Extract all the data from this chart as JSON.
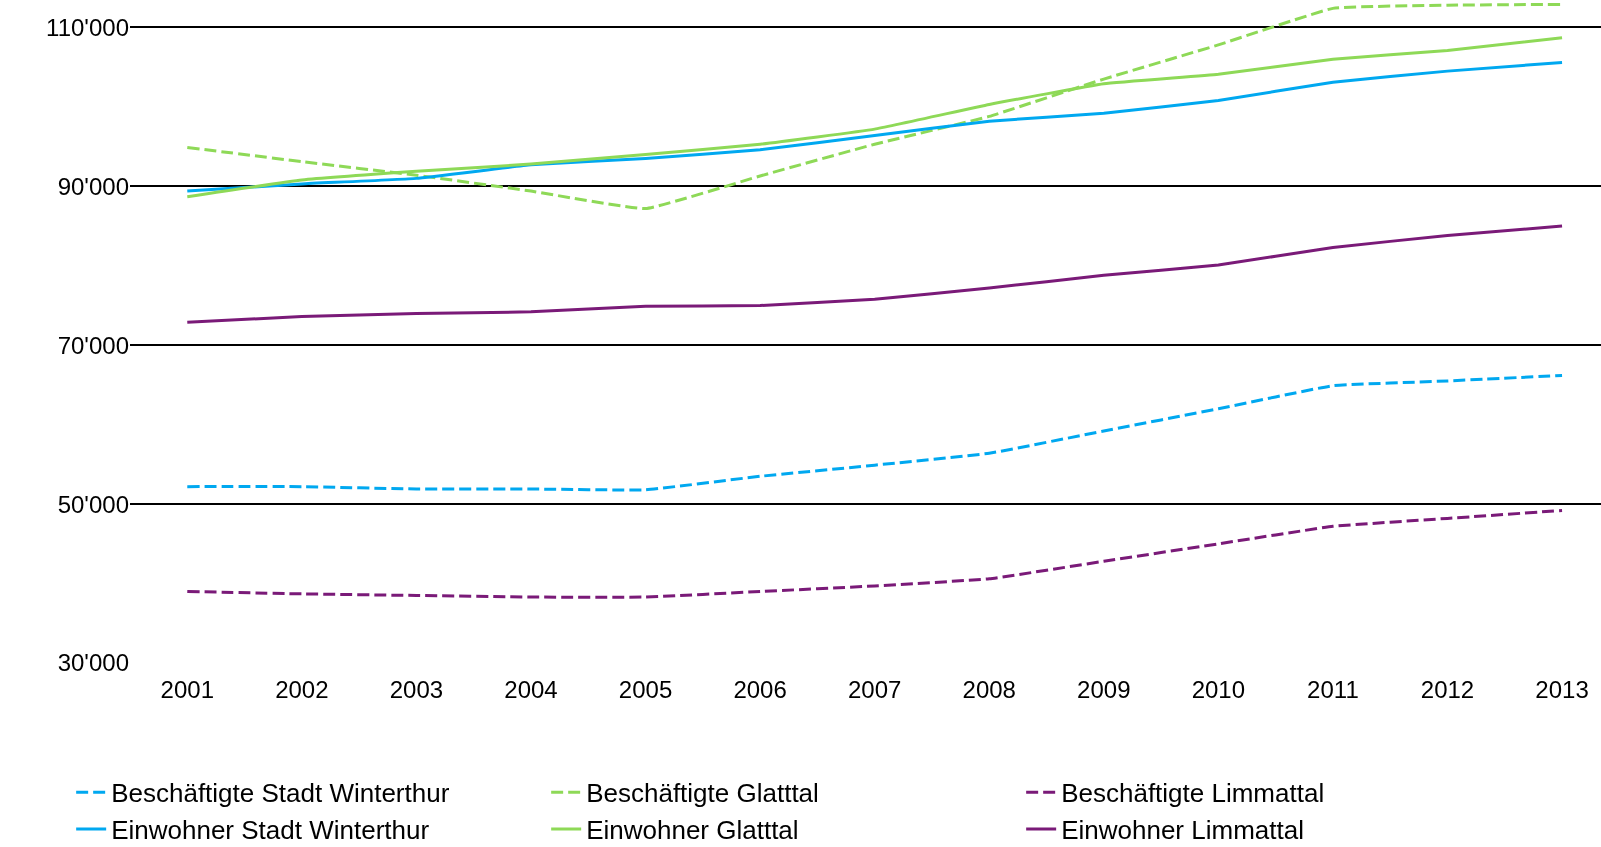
{
  "chart_data": {
    "type": "line",
    "categories": [
      "2001",
      "2002",
      "2003",
      "2004",
      "2005",
      "2006",
      "2007",
      "2008",
      "2009",
      "2010",
      "2011",
      "2012",
      "2013"
    ],
    "series": [
      {
        "name": "Beschäftigte Stadt Winterthur",
        "color": "#00a8f0",
        "line_style": "dashed",
        "values": [
          52200,
          52200,
          51900,
          51900,
          51800,
          53500,
          54900,
          56400,
          59200,
          62000,
          64900,
          65500,
          66200
        ]
      },
      {
        "name": "Beschäftigte Glatttal",
        "color": "#8ed957",
        "line_style": "dashed",
        "values": [
          94900,
          93100,
          91400,
          89400,
          87200,
          91300,
          95300,
          98800,
          103500,
          107800,
          112400,
          112800,
          112900
        ]
      },
      {
        "name": "Beschäftigte Limmattal",
        "color": "#7a1a78",
        "line_style": "dashed",
        "values": [
          39000,
          38700,
          38500,
          38300,
          38300,
          39000,
          39700,
          40600,
          42800,
          45000,
          47200,
          48200,
          49200
        ]
      },
      {
        "name": "Einwohner Stadt Winterthur",
        "color": "#00a8f0",
        "line_style": "solid",
        "values": [
          89400,
          90300,
          91000,
          92700,
          93500,
          94600,
          96400,
          98200,
          99200,
          100800,
          103100,
          104500,
          105600
        ]
      },
      {
        "name": "Einwohner Glatttal",
        "color": "#8ed957",
        "line_style": "solid",
        "values": [
          88700,
          90800,
          91900,
          92800,
          94000,
          95300,
          97200,
          100300,
          102900,
          104100,
          106000,
          107100,
          108700
        ]
      },
      {
        "name": "Einwohner Limmattal",
        "color": "#7a1a78",
        "line_style": "solid",
        "values": [
          72900,
          73600,
          74000,
          74200,
          74900,
          75000,
          75800,
          77200,
          78800,
          80100,
          82300,
          83800,
          85000
        ]
      }
    ],
    "ylim": [
      30000,
      113200
    ],
    "yticks": [
      {
        "value": 30000,
        "label": "30'000"
      },
      {
        "value": 50000,
        "label": "50'000"
      },
      {
        "value": 70000,
        "label": "70'000"
      },
      {
        "value": 90000,
        "label": "90'000"
      },
      {
        "value": 110000,
        "label": "110'000"
      }
    ],
    "grid": "y",
    "legend": "bottom",
    "marker": "none"
  }
}
